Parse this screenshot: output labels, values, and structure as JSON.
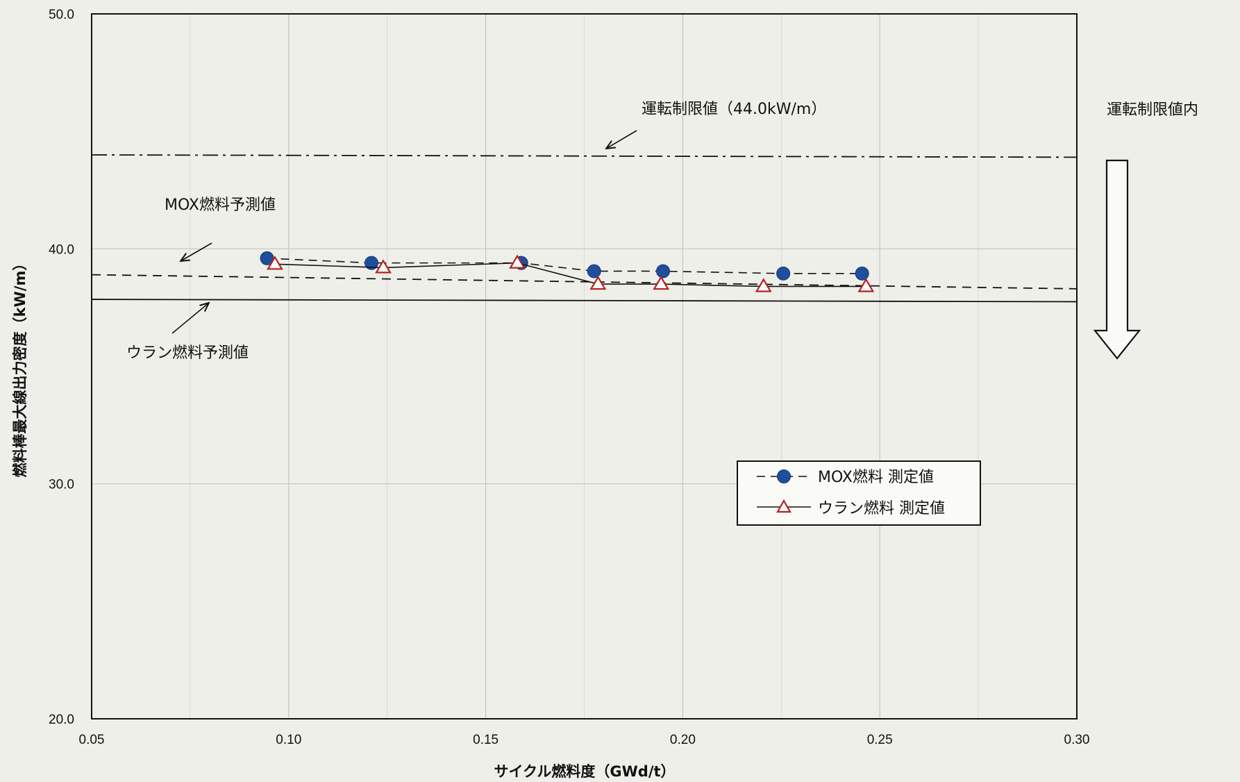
{
  "chart_data": {
    "type": "line",
    "title": "",
    "xlabel": "サイクル燃料度（GWd/t）",
    "ylabel": "燃料棒最大線出力密度（kW/m）",
    "xlim": [
      0.05,
      0.3
    ],
    "ylim": [
      20.0,
      50.0
    ],
    "x_ticks": [
      "0.05",
      "0.10",
      "0.15",
      "0.20",
      "0.25",
      "0.30"
    ],
    "y_ticks": [
      "20.0",
      "30.0",
      "40.0",
      "50.0"
    ],
    "grid": true,
    "legend_position": "lower-right",
    "series": [
      {
        "name": "MOX燃料 測定値",
        "marker": "circle",
        "line_style": "dashed",
        "color": "#1f4e9c",
        "x": [
          0.0945,
          0.121,
          0.159,
          0.1775,
          0.195,
          0.2255,
          0.2455
        ],
        "y": [
          39.6,
          39.4,
          39.4,
          39.05,
          39.05,
          38.95,
          38.95
        ]
      },
      {
        "name": "ウラン燃料 測定値",
        "marker": "triangle",
        "line_style": "solid",
        "color": "#b22222",
        "x": [
          0.0965,
          0.124,
          0.158,
          0.1785,
          0.1945,
          0.2205,
          0.2465
        ],
        "y": [
          39.35,
          39.2,
          39.4,
          38.5,
          38.5,
          38.4,
          38.4
        ]
      }
    ],
    "reference_lines": [
      {
        "label": "運転制限値（44.0kW/m）",
        "style": "dash-dot",
        "y_start": 44.0,
        "y_end": 43.9
      },
      {
        "label": "MOX燃料予測値",
        "style": "dashed",
        "y_start": 38.9,
        "y_end": 38.3
      },
      {
        "label": "ウラン燃料予測値",
        "style": "solid",
        "y_start": 37.85,
        "y_end": 37.75
      }
    ],
    "side_annotation": "運転制限値内"
  }
}
